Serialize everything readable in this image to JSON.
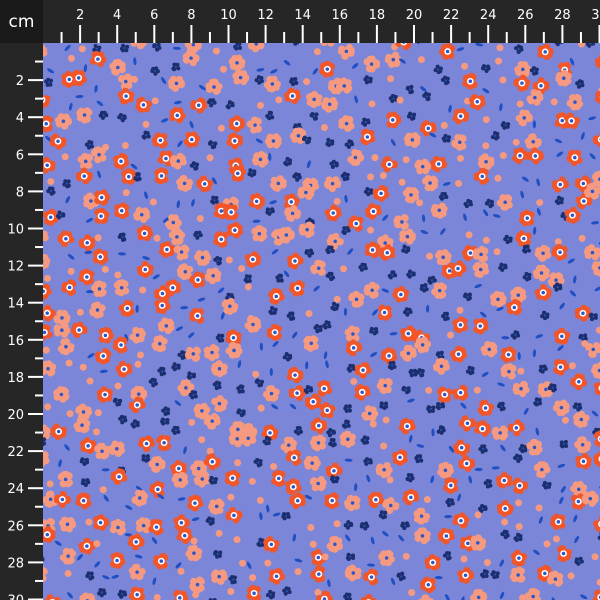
{
  "ruler": {
    "unit": "cm",
    "top_labels": [
      "2",
      "4",
      "6",
      "8",
      "10",
      "12",
      "14",
      "16",
      "18",
      "20",
      "22",
      "24",
      "26",
      "28",
      "30"
    ],
    "left_labels": [
      "2",
      "4",
      "6",
      "8",
      "10",
      "12",
      "14",
      "16",
      "18",
      "20",
      "22",
      "24",
      "26",
      "28",
      "30"
    ]
  },
  "fabric": {
    "pattern": "ditsy floral",
    "colors": {
      "background": "#7c86d9",
      "orange_flower": "#f0562a",
      "peach_flower": "#f59a80",
      "navy_flower": "#1c2f6e",
      "leaf": "#1f4fc2",
      "center_white": "#ffffff",
      "center_blue": "#2a56c8"
    }
  }
}
